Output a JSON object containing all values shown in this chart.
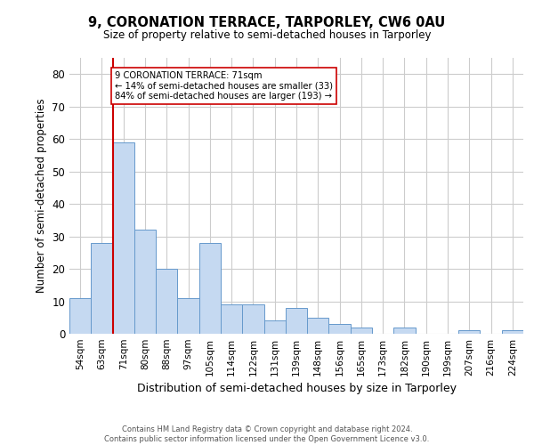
{
  "title": "9, CORONATION TERRACE, TARPORLEY, CW6 0AU",
  "subtitle": "Size of property relative to semi-detached houses in Tarporley",
  "xlabel": "Distribution of semi-detached houses by size in Tarporley",
  "ylabel": "Number of semi-detached properties",
  "categories": [
    "54sqm",
    "63sqm",
    "71sqm",
    "80sqm",
    "88sqm",
    "97sqm",
    "105sqm",
    "114sqm",
    "122sqm",
    "131sqm",
    "139sqm",
    "148sqm",
    "156sqm",
    "165sqm",
    "173sqm",
    "182sqm",
    "190sqm",
    "199sqm",
    "207sqm",
    "216sqm",
    "224sqm"
  ],
  "values": [
    11,
    28,
    59,
    32,
    20,
    11,
    28,
    9,
    9,
    4,
    8,
    5,
    3,
    2,
    0,
    2,
    0,
    0,
    1,
    0,
    1
  ],
  "bar_color": "#c5d9f1",
  "bar_edge_color": "#6699cc",
  "highlight_index": 2,
  "highlight_line_color": "#cc0000",
  "annotation_line1": "9 CORONATION TERRACE: 71sqm",
  "annotation_line2": "← 14% of semi-detached houses are smaller (33)",
  "annotation_line3": "84% of semi-detached houses are larger (193) →",
  "annotation_box_color": "#cc0000",
  "ylim": [
    0,
    85
  ],
  "yticks": [
    0,
    10,
    20,
    30,
    40,
    50,
    60,
    70,
    80
  ],
  "footer_line1": "Contains HM Land Registry data © Crown copyright and database right 2024.",
  "footer_line2": "Contains public sector information licensed under the Open Government Licence v3.0.",
  "background_color": "#ffffff",
  "grid_color": "#cccccc"
}
